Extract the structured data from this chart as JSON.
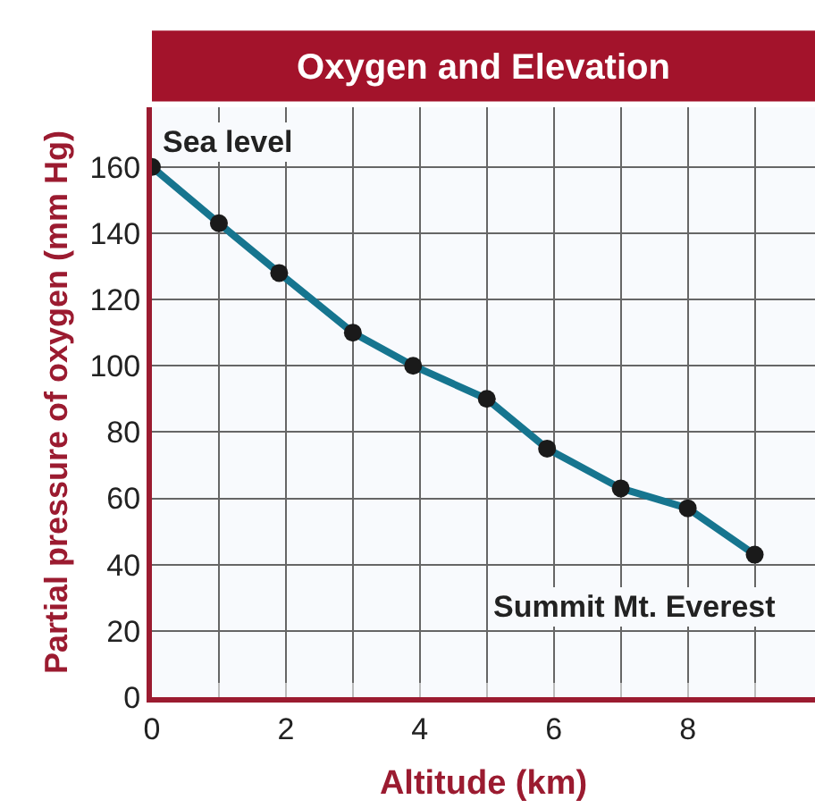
{
  "chart_data": {
    "type": "line",
    "title": "Oxygen and Elevation",
    "xlabel": "Altitude (km)",
    "ylabel": "Partial pressure of oxygen (mm Hg)",
    "x": [
      0,
      1,
      1.9,
      3,
      3.9,
      5,
      5.9,
      7,
      8,
      9
    ],
    "series": [
      {
        "color": "#16758f",
        "values": [
          160,
          143,
          128,
          110,
          100,
          90,
          75,
          63,
          57,
          43
        ]
      }
    ],
    "annotations": [
      {
        "text": "Sea level",
        "x": 0,
        "y": 160
      },
      {
        "text": "Summit Mt. Everest",
        "x": 9,
        "y": 43
      }
    ],
    "xlim": [
      0,
      9.9
    ],
    "xticks": [
      0,
      {
        "value": 1,
        "label": null
      },
      2,
      {
        "value": 3,
        "label": null
      },
      4,
      {
        "value": 5,
        "label": null
      },
      6,
      {
        "value": 7,
        "label": null
      },
      8,
      {
        "value": 9,
        "label": null
      }
    ],
    "ylim": [
      0,
      178
    ],
    "yticks": [
      0,
      20,
      40,
      60,
      80,
      100,
      120,
      140,
      160
    ],
    "grid": true,
    "marker": "circle",
    "line_style": "solid"
  }
}
